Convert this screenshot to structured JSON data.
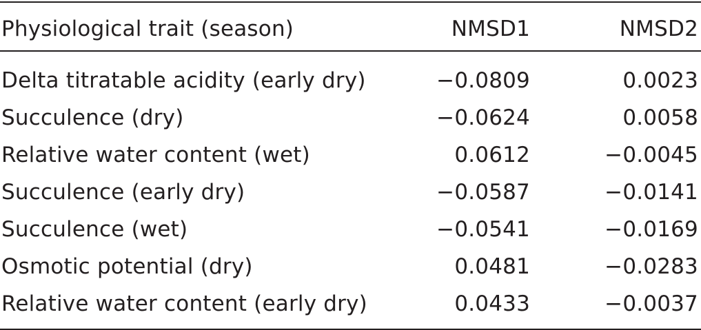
{
  "table": {
    "headers": [
      "Physiological trait (season)",
      "NMSD1",
      "NMSD2"
    ],
    "rows": [
      [
        "Delta titratable acidity (early dry)",
        "−0.0809",
        "0.0023"
      ],
      [
        "Succulence (dry)",
        "−0.0624",
        "0.0058"
      ],
      [
        "Relative water content (wet)",
        "0.0612",
        "−0.0045"
      ],
      [
        "Succulence (early dry)",
        "−0.0587",
        "−0.0141"
      ],
      [
        "Succulence (wet)",
        "−0.0541",
        "−0.0169"
      ],
      [
        "Osmotic potential (dry)",
        "0.0481",
        "−0.0283"
      ],
      [
        "Relative water content (early dry)",
        "0.0433",
        "−0.0037"
      ]
    ]
  }
}
